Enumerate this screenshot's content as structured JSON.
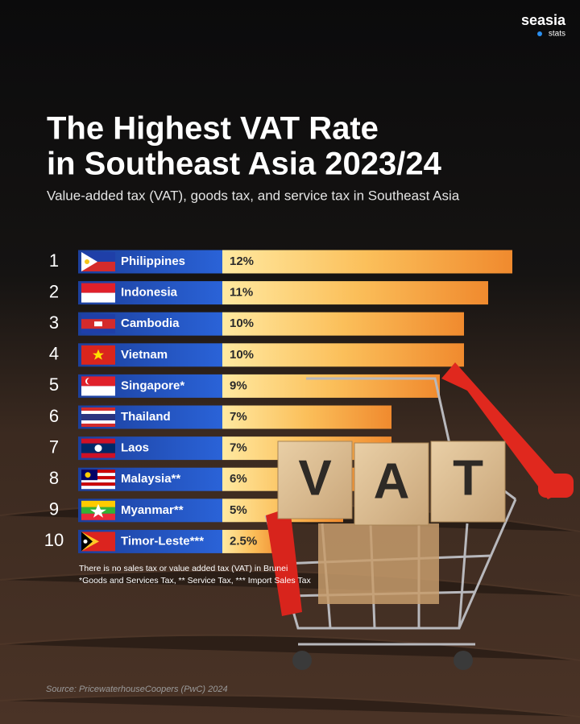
{
  "brand": {
    "name": "seasia",
    "sub": "stats"
  },
  "chart_data": {
    "type": "bar",
    "title": [
      "The Highest VAT Rate",
      "in Southeast Asia 2023/24"
    ],
    "subtitle": "Value-added tax (VAT), goods tax, and service tax in Southeast Asia",
    "ranks": [
      1,
      2,
      3,
      4,
      5,
      6,
      7,
      8,
      9,
      10
    ],
    "categories": [
      "Philippines",
      "Indonesia",
      "Cambodia",
      "Vietnam",
      "Singapore*",
      "Thailand",
      "Laos",
      "Malaysia**",
      "Myanmar**",
      "Timor-Leste***"
    ],
    "values": [
      12,
      11,
      10,
      10,
      9,
      7,
      7,
      6,
      5,
      2.5
    ],
    "value_labels": [
      "12%",
      "11%",
      "10%",
      "10%",
      "9%",
      "7%",
      "7%",
      "6%",
      "5%",
      "2.5%"
    ],
    "notes": [
      "There is no sales tax or value added tax (VAT) in Brunei",
      "*Goods and Services Tax, ** Service Tax, *** Import Sales Tax"
    ],
    "source": "Source: PricewaterhouseCoopers (PwC) 2024",
    "image_text": [
      "V",
      "A",
      "T"
    ]
  }
}
